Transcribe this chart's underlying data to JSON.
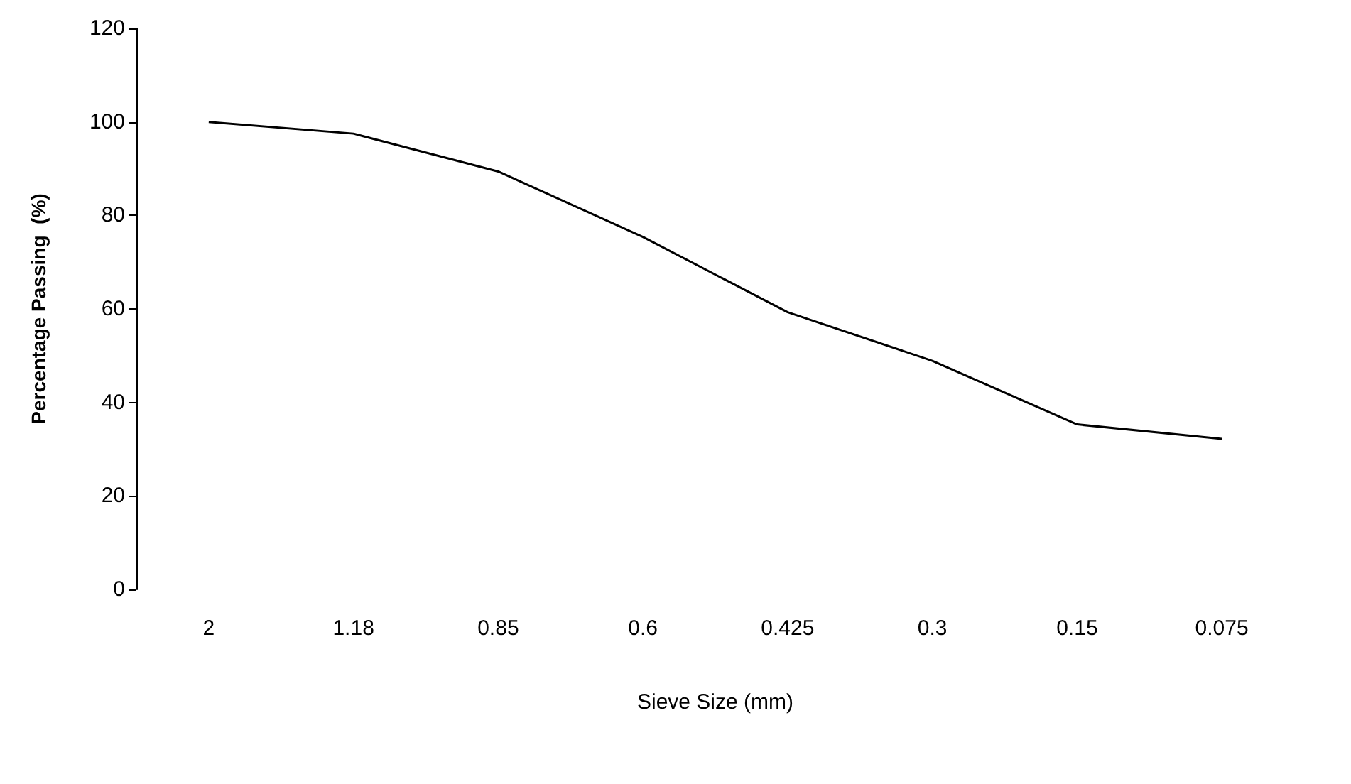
{
  "chart_data": {
    "type": "line",
    "xlabel": "Sieve Size (mm)",
    "ylabel": "Percentage Passing  (%)",
    "categories": [
      "2",
      "1.18",
      "0.85",
      "0.6",
      "0.425",
      "0.3",
      "0.15",
      "0.075"
    ],
    "series": [
      {
        "color": "#000000",
        "values": [
          100,
          97.5,
          89.4,
          75.4,
          59.3,
          48.9,
          35.3,
          32.2
        ]
      }
    ],
    "ylim": [
      0,
      120
    ],
    "yticks": [
      0,
      20,
      40,
      60,
      80,
      100,
      120
    ],
    "grid": false,
    "marker": "none",
    "line_style": "solid"
  }
}
